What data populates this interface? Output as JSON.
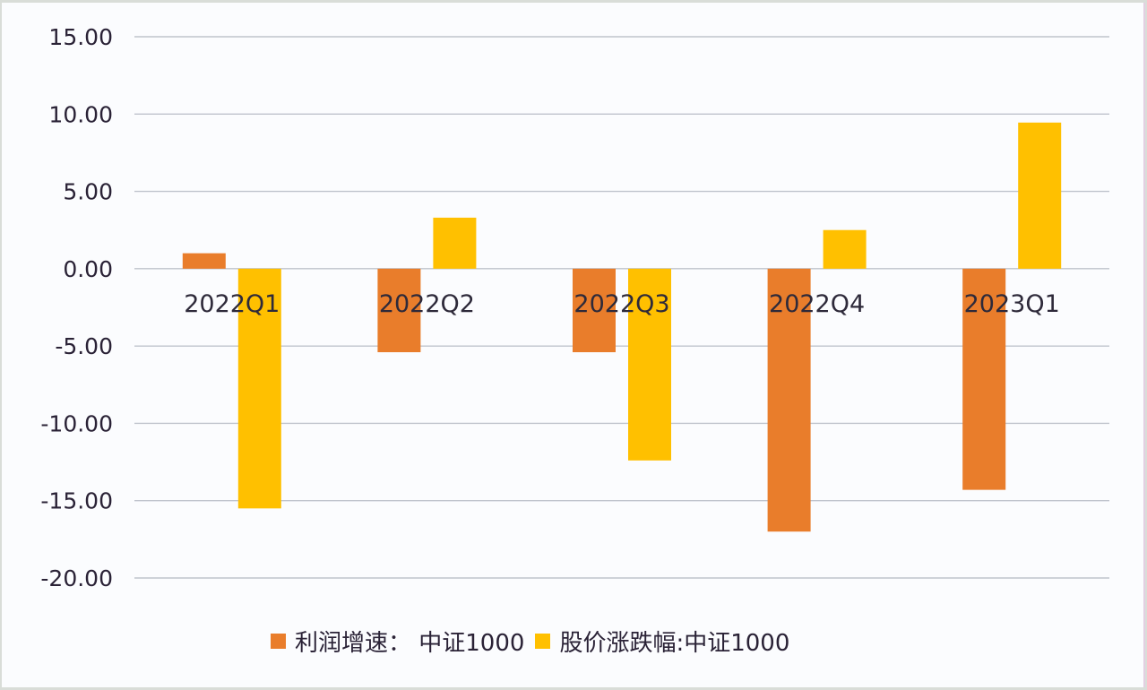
{
  "chart_data": {
    "type": "bar",
    "title": "",
    "xlabel": "",
    "ylabel": "",
    "categories": [
      "2022Q1",
      "2022Q2",
      "2022Q3",
      "2022Q4",
      "2023Q1"
    ],
    "series": [
      {
        "name": "利润增速：中证1000",
        "color": "#e97d2b",
        "values": [
          1.0,
          -5.4,
          -5.4,
          -17.0,
          -14.3
        ]
      },
      {
        "name": "股价涨跌幅:中证1000",
        "color": "#ffc000",
        "values": [
          -15.5,
          3.3,
          -12.4,
          2.5,
          9.45
        ]
      }
    ],
    "ylim": [
      -20,
      15
    ],
    "yticks": [
      "15.00",
      "10.00",
      "5.00",
      "0.00",
      "-5.00",
      "-10.00",
      "-15.00",
      "-20.00"
    ],
    "ytick_values": [
      15,
      10,
      5,
      0,
      -5,
      -10,
      -15,
      -20
    ],
    "grid": true,
    "legend_position": "bottom"
  },
  "legend": {
    "items": [
      {
        "label": "利润增速： 中证1000",
        "color": "#e97d2b"
      },
      {
        "label": "股价涨跌幅:中证1000",
        "color": "#ffc000"
      }
    ]
  }
}
